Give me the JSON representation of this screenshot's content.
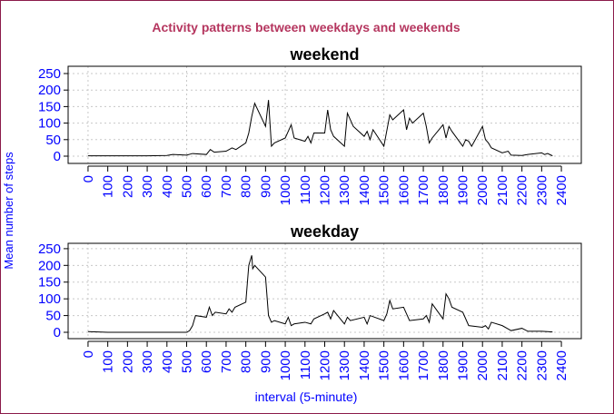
{
  "title": "Activity patterns between weekdays and weekends",
  "ylabel": "Mean number of steps",
  "xlabel": "interval (5-minute)",
  "chart_data": [
    {
      "type": "line",
      "title": "weekend",
      "x": [
        0,
        100,
        200,
        300,
        400,
        430,
        500,
        530,
        600,
        620,
        640,
        700,
        730,
        750,
        800,
        815,
        830,
        845,
        900,
        915,
        930,
        945,
        1000,
        1030,
        1045,
        1100,
        1115,
        1130,
        1145,
        1200,
        1215,
        1230,
        1245,
        1300,
        1315,
        1330,
        1345,
        1400,
        1415,
        1430,
        1445,
        1500,
        1530,
        1545,
        1600,
        1615,
        1630,
        1645,
        1700,
        1715,
        1730,
        1745,
        1800,
        1815,
        1830,
        1845,
        1900,
        1915,
        1930,
        1945,
        2000,
        2015,
        2030,
        2045,
        2100,
        2130,
        2145,
        2200,
        2230,
        2300,
        2315,
        2330,
        2355
      ],
      "series": [
        {
          "color": "#000000",
          "values": [
            1,
            1,
            1,
            1,
            2,
            5,
            3,
            8,
            5,
            20,
            12,
            15,
            25,
            20,
            40,
            70,
            120,
            160,
            90,
            170,
            30,
            40,
            55,
            95,
            55,
            45,
            60,
            40,
            70,
            70,
            140,
            80,
            60,
            30,
            130,
            110,
            90,
            60,
            75,
            50,
            80,
            30,
            125,
            110,
            140,
            80,
            115,
            100,
            130,
            90,
            40,
            55,
            95,
            55,
            90,
            75,
            30,
            50,
            45,
            30,
            90,
            50,
            40,
            25,
            10,
            15,
            3,
            2,
            5,
            10,
            5,
            8,
            1
          ]
        }
      ],
      "xlim": [
        -101,
        2501
      ],
      "ylim": [
        -22,
        272
      ],
      "xticks": [
        0,
        100,
        200,
        300,
        400,
        500,
        600,
        700,
        800,
        900,
        1000,
        1100,
        1200,
        1300,
        1400,
        1500,
        1600,
        1700,
        1800,
        1900,
        2000,
        2100,
        2200,
        2300,
        2400
      ],
      "yticks": [
        0,
        50,
        100,
        150,
        200,
        250
      ],
      "grid": true
    },
    {
      "type": "line",
      "title": "weekday",
      "x": [
        0,
        100,
        200,
        300,
        400,
        500,
        515,
        530,
        545,
        600,
        615,
        630,
        645,
        700,
        715,
        730,
        745,
        800,
        815,
        830,
        835,
        845,
        900,
        915,
        930,
        945,
        1000,
        1015,
        1030,
        1045,
        1100,
        1130,
        1145,
        1200,
        1215,
        1230,
        1245,
        1300,
        1315,
        1330,
        1400,
        1415,
        1430,
        1500,
        1515,
        1530,
        1545,
        1600,
        1630,
        1700,
        1715,
        1730,
        1745,
        1800,
        1815,
        1830,
        1845,
        1900,
        1930,
        2000,
        2015,
        2030,
        2045,
        2100,
        2130,
        2145,
        2200,
        2230,
        2300,
        2330,
        2355
      ],
      "series": [
        {
          "color": "#000000",
          "values": [
            2,
            0,
            0,
            0,
            0,
            0,
            5,
            20,
            50,
            45,
            75,
            50,
            60,
            55,
            70,
            60,
            75,
            90,
            200,
            230,
            190,
            200,
            165,
            50,
            30,
            35,
            25,
            45,
            20,
            25,
            30,
            25,
            40,
            55,
            60,
            40,
            65,
            25,
            45,
            35,
            45,
            25,
            50,
            35,
            55,
            95,
            70,
            75,
            35,
            40,
            50,
            30,
            85,
            40,
            115,
            100,
            75,
            60,
            20,
            15,
            20,
            10,
            30,
            20,
            10,
            5,
            12,
            3,
            3,
            2,
            1
          ]
        }
      ],
      "xlim": [
        -101,
        2501
      ],
      "ylim": [
        -19,
        266
      ],
      "xticks": [
        0,
        100,
        200,
        300,
        400,
        500,
        600,
        700,
        800,
        900,
        1000,
        1100,
        1200,
        1300,
        1400,
        1500,
        1600,
        1700,
        1800,
        1900,
        2000,
        2100,
        2200,
        2300,
        2400
      ],
      "yticks": [
        0,
        50,
        100,
        150,
        200,
        250
      ],
      "grid": true
    }
  ]
}
